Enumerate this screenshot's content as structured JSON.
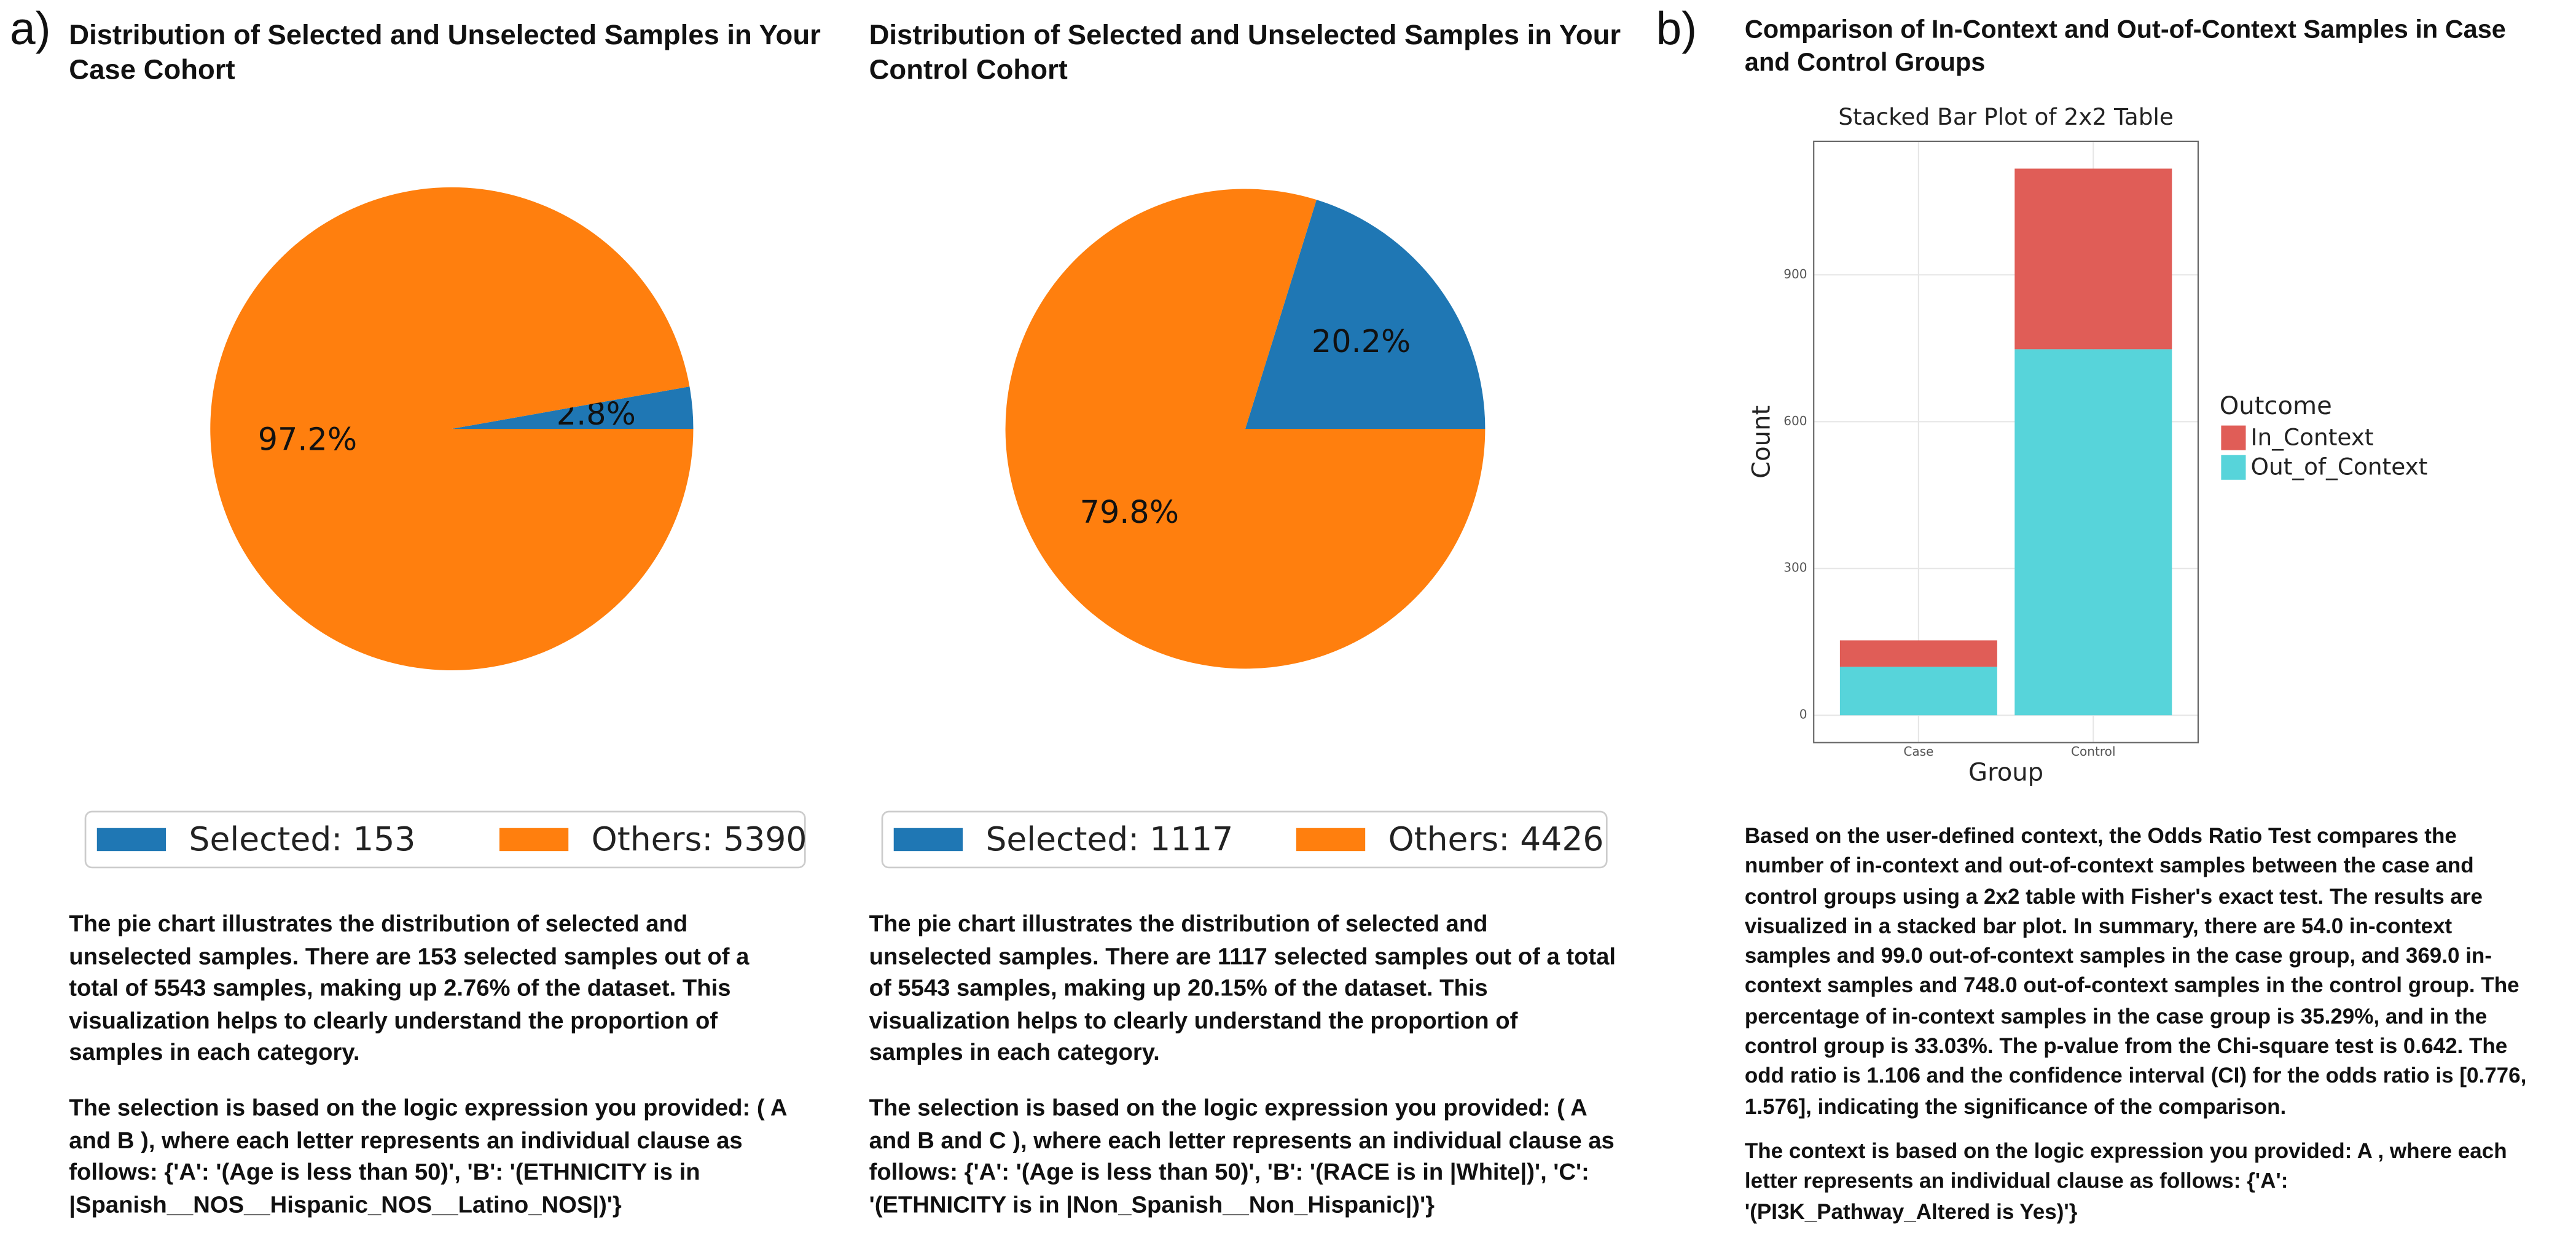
{
  "panel_labels": [
    "a)",
    "b)"
  ],
  "chart_data": [
    {
      "type": "pie",
      "title": "Distribution of Selected and Unselected Samples in Your Case Cohort",
      "categories": [
        "Selected: 153",
        "Others: 5390"
      ],
      "values": [
        2.8,
        97.2
      ],
      "value_labels": [
        "2.8%",
        "97.2%"
      ],
      "colors": [
        "#1f77b4",
        "#ff7f0e"
      ]
    },
    {
      "type": "pie",
      "title": "Distribution of Selected and Unselected Samples in Your Control Cohort",
      "categories": [
        "Selected: 1117",
        "Others: 4426"
      ],
      "values": [
        20.2,
        79.8
      ],
      "value_labels": [
        "20.2%",
        "79.8%"
      ],
      "colors": [
        "#1f77b4",
        "#ff7f0e"
      ]
    },
    {
      "type": "bar",
      "title": "Comparison of In-Context and Out-of-Context Samples in Case and Control Groups",
      "subtitle": "Stacked Bar Plot of 2x2 Table",
      "x_label": "Group",
      "y_label": "Count",
      "legend_title": "Outcome",
      "categories": [
        "Case",
        "Control"
      ],
      "series": [
        {
          "name": "In_Context",
          "color": "#e05d57",
          "values": [
            54,
            369
          ]
        },
        {
          "name": "Out_of_Context",
          "color": "#57d4da",
          "values": [
            99,
            748
          ]
        }
      ],
      "ylim": [
        -55.85,
        1172.85
      ],
      "yticks": [
        0,
        300,
        600,
        900
      ],
      "grid": true
    }
  ],
  "descriptions": [
    [
      "The pie chart illustrates the distribution of selected and unselected samples. There are 153 selected samples out of a total of 5543 samples, making up 2.76% of the dataset. This visualization helps to clearly understand the proportion of samples in each category.",
      "The selection is based on the logic expression you provided: ( A and B ), where each letter represents an individual clause as follows: {'A': '(Age is less than 50)', 'B': '(ETHNICITY is in |Spanish__NOS__Hispanic_NOS__Latino_NOS|)'}"
    ],
    [
      "The pie chart illustrates the distribution of selected and unselected samples. There are 1117 selected samples out of a total of 5543 samples, making up 20.15% of the dataset. This visualization helps to clearly understand the proportion of samples in each category.",
      "The selection is based on the logic expression you provided: ( A and B and C ), where each letter represents an individual clause as follows: {'A': '(Age is less than 50)', 'B': '(RACE is in |White|)', 'C': '(ETHNICITY is in |Non_Spanish__Non_Hispanic|)'}"
    ],
    [
      "Based on the user-defined context, the Odds Ratio Test compares the number of in-context and out-of-context samples between the case and control groups using a 2x2 table with Fisher's exact test. The results are visualized in a stacked bar plot. In summary, there are 54.0 in-context samples and 99.0 out-of-context samples in the case group, and 369.0 in-context samples and 748.0 out-of-context samples in the control group. The percentage of in-context samples in the case group is 35.29%, and in the control group is 33.03%. The p-value from the Chi-square test is 0.642. The odd ratio is 1.106 and the confidence interval (CI) for the odds ratio is [0.776, 1.576], indicating the significance of the comparison.",
      "The context is based on the logic expression you provided: A , where each letter represents an individual clause as follows: {'A': '(PI3K_Pathway_Altered is Yes)'}"
    ]
  ]
}
